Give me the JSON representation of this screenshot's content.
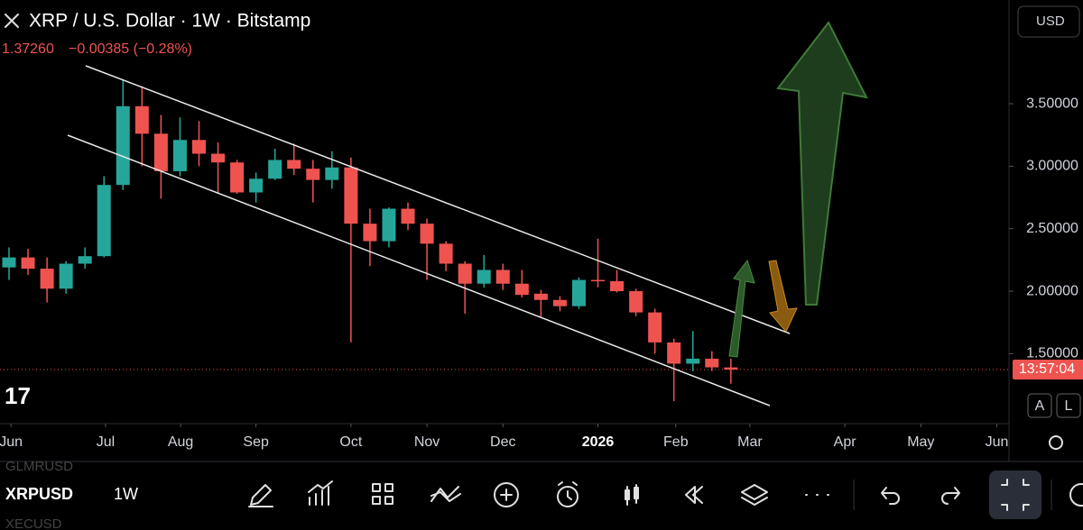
{
  "header": {
    "title": "XRP / U.S. Dollar · 1W · Bitstamp",
    "price": "1.37260",
    "change": "−0.00385 (−0.28%)",
    "currency": "USD"
  },
  "chart_data": {
    "type": "candlestick",
    "open": [
      2.19,
      2.27,
      2.18,
      2.02,
      2.22,
      2.28,
      2.85,
      3.48,
      3.26,
      2.96,
      3.21,
      3.1,
      3.03,
      2.79,
      2.9,
      3.05,
      2.98,
      2.89,
      2.99,
      2.54,
      2.4,
      2.66,
      2.54,
      2.38,
      2.22,
      2.06,
      2.17,
      2.06,
      1.98,
      1.93,
      1.88,
      2.09,
      2.08,
      2.0,
      1.83,
      1.59,
      1.42,
      1.46,
      1.39
    ],
    "high": [
      2.35,
      2.34,
      2.27,
      2.24,
      2.35,
      2.92,
      3.69,
      3.64,
      3.41,
      3.39,
      3.36,
      3.19,
      3.05,
      2.95,
      3.14,
      3.18,
      3.05,
      3.12,
      3.07,
      2.66,
      2.67,
      2.71,
      2.58,
      2.4,
      2.24,
      2.29,
      2.22,
      2.17,
      2.01,
      1.96,
      2.11,
      2.42,
      2.17,
      2.02,
      1.86,
      1.62,
      1.68,
      1.52,
      1.46
    ],
    "low": [
      2.09,
      2.13,
      1.91,
      1.98,
      2.18,
      2.27,
      2.81,
      3.0,
      2.74,
      2.92,
      3.0,
      2.78,
      2.78,
      2.71,
      2.89,
      2.93,
      2.71,
      2.82,
      1.59,
      2.2,
      2.35,
      2.49,
      2.09,
      2.16,
      1.82,
      2.03,
      2.01,
      1.95,
      1.79,
      1.84,
      1.86,
      2.03,
      1.99,
      1.8,
      1.5,
      1.12,
      1.36,
      1.36,
      1.26
    ],
    "close": [
      2.27,
      2.18,
      2.02,
      2.22,
      2.28,
      2.85,
      3.48,
      3.26,
      2.96,
      3.21,
      3.1,
      3.03,
      2.79,
      2.9,
      3.05,
      2.98,
      2.89,
      2.99,
      2.54,
      2.4,
      2.66,
      2.54,
      2.38,
      2.22,
      2.06,
      2.17,
      2.06,
      1.97,
      1.93,
      1.88,
      2.09,
      2.08,
      2.0,
      1.83,
      1.59,
      1.42,
      1.46,
      1.39,
      1.3726
    ],
    "up_color": "#26a69a",
    "down_color": "#ef5350",
    "ylim": [
      0.94,
      4.33
    ],
    "yticks": [
      {
        "value": 1.5,
        "label": "1.50000"
      },
      {
        "value": 2,
        "label": "2.00000"
      },
      {
        "value": 2.5,
        "label": "2.50000"
      },
      {
        "value": 3,
        "label": "3.00000"
      },
      {
        "value": 3.5,
        "label": "3.50000"
      }
    ],
    "xlim": [
      -0.475,
      52.64
    ],
    "xticks": [
      {
        "value": 0.1,
        "label": "Jun"
      },
      {
        "value": 5.08,
        "label": "Jul"
      },
      {
        "value": 9.03,
        "label": "Aug"
      },
      {
        "value": 13,
        "label": "Sep"
      },
      {
        "value": 18,
        "label": "Oct"
      },
      {
        "value": 22,
        "label": "Nov"
      },
      {
        "value": 26,
        "label": "Dec"
      },
      {
        "value": 31,
        "label": "2026"
      },
      {
        "value": 35.1,
        "label": "Feb"
      },
      {
        "value": 39,
        "label": "Mar"
      },
      {
        "value": 44,
        "label": "Apr"
      },
      {
        "value": 48,
        "label": "May"
      },
      {
        "value": 52,
        "label": "Jun"
      }
    ],
    "countdown": "13:57:04"
  },
  "scale_buttons": [
    "A",
    "L"
  ],
  "toolbar": {
    "symbol": "XRPUSD",
    "interval": "1W",
    "prev_symbol": "GLMRUSD",
    "next_symbol": "XECUSD"
  }
}
